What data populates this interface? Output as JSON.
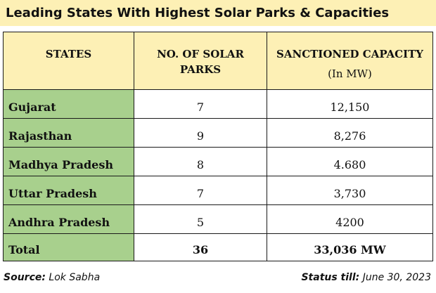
{
  "title": "Leading States With Highest Solar Parks & Capacities",
  "headers": {
    "states": "STATES",
    "parks_line1": "NO. OF SOLAR",
    "parks_line2": "PARKS",
    "capacity": "SANCTIONED CAPACITY",
    "capacity_unit": "(In MW)"
  },
  "rows": [
    {
      "state": "Gujarat",
      "parks": "7",
      "capacity": "12,150"
    },
    {
      "state": "Rajasthan",
      "parks": "9",
      "capacity": "8,276"
    },
    {
      "state": "Madhya Pradesh",
      "parks": "8",
      "capacity": "4.680"
    },
    {
      "state": "Uttar Pradesh",
      "parks": "7",
      "capacity": "3,730"
    },
    {
      "state": "Andhra Pradesh",
      "parks": "5",
      "capacity": "4200"
    }
  ],
  "total": {
    "label": "Total",
    "parks": "36",
    "capacity": "33,036 MW"
  },
  "footer": {
    "source_label": "Source:",
    "source_value": "Lok Sabha",
    "status_label": "Status till:",
    "status_value": "June 30, 2023"
  },
  "colors": {
    "header_bg": "#fdf0b5",
    "state_bg": "#a8d08d"
  }
}
